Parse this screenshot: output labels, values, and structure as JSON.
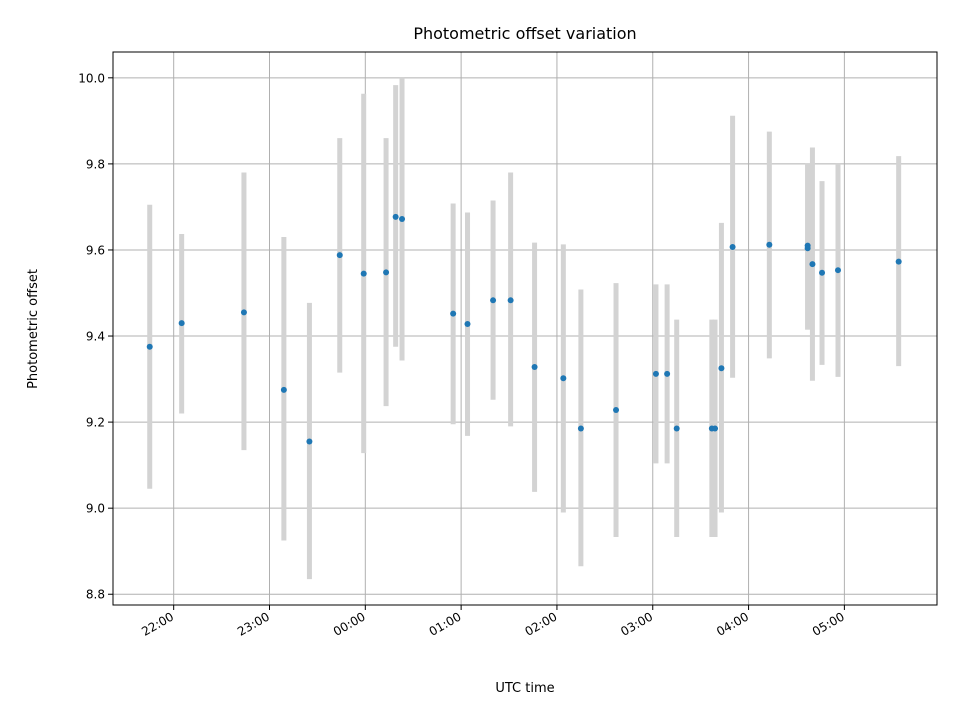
{
  "chart_data": {
    "type": "scatter",
    "title": "Photometric offset variation",
    "xlabel": "UTC time",
    "ylabel": "Photometric offset",
    "xlim": [
      "21:22",
      "05:58"
    ],
    "ylim": [
      8.775,
      10.06
    ],
    "grid": true,
    "x_ticks": [
      "22:00",
      "23:00",
      "00:00",
      "01:00",
      "02:00",
      "03:00",
      "04:00",
      "05:00"
    ],
    "y_ticks": [
      "8.8",
      "9.0",
      "9.2",
      "9.4",
      "9.6",
      "9.8",
      "10.0"
    ],
    "colors": {
      "points": "#1f77b4",
      "errorbars": "#d3d3d3",
      "grid": "#b0b0b0"
    },
    "points": [
      {
        "x": "21:45",
        "y": 9.375,
        "lo": 9.045,
        "hi": 9.705
      },
      {
        "x": "22:05",
        "y": 9.43,
        "lo": 9.22,
        "hi": 9.637
      },
      {
        "x": "22:44",
        "y": 9.455,
        "lo": 9.135,
        "hi": 9.78
      },
      {
        "x": "23:09",
        "y": 9.275,
        "lo": 8.925,
        "hi": 9.63
      },
      {
        "x": "23:25",
        "y": 9.155,
        "lo": 8.835,
        "hi": 9.477
      },
      {
        "x": "23:44",
        "y": 9.588,
        "lo": 9.315,
        "hi": 9.86
      },
      {
        "x": "23:59",
        "y": 9.545,
        "lo": 9.128,
        "hi": 9.963
      },
      {
        "x": "00:13",
        "y": 9.548,
        "lo": 9.237,
        "hi": 9.86
      },
      {
        "x": "00:19",
        "y": 9.677,
        "lo": 9.375,
        "hi": 9.983
      },
      {
        "x": "00:23",
        "y": 9.672,
        "lo": 9.343,
        "hi": 10.0
      },
      {
        "x": "00:55",
        "y": 9.452,
        "lo": 9.195,
        "hi": 9.708
      },
      {
        "x": "01:04",
        "y": 9.428,
        "lo": 9.168,
        "hi": 9.687
      },
      {
        "x": "01:20",
        "y": 9.483,
        "lo": 9.252,
        "hi": 9.715
      },
      {
        "x": "01:31",
        "y": 9.483,
        "lo": 9.19,
        "hi": 9.78
      },
      {
        "x": "01:46",
        "y": 9.328,
        "lo": 9.038,
        "hi": 9.617
      },
      {
        "x": "02:04",
        "y": 9.302,
        "lo": 8.99,
        "hi": 9.613
      },
      {
        "x": "02:15",
        "y": 9.185,
        "lo": 8.865,
        "hi": 9.508
      },
      {
        "x": "02:37",
        "y": 9.228,
        "lo": 8.933,
        "hi": 9.523
      },
      {
        "x": "03:02",
        "y": 9.312,
        "lo": 9.104,
        "hi": 9.52
      },
      {
        "x": "03:09",
        "y": 9.312,
        "lo": 9.104,
        "hi": 9.52
      },
      {
        "x": "03:15",
        "y": 9.185,
        "lo": 8.933,
        "hi": 9.438
      },
      {
        "x": "03:37",
        "y": 9.185,
        "lo": 8.933,
        "hi": 9.438
      },
      {
        "x": "03:39",
        "y": 9.185,
        "lo": 8.933,
        "hi": 9.438
      },
      {
        "x": "03:43",
        "y": 9.325,
        "lo": 8.99,
        "hi": 9.663
      },
      {
        "x": "03:50",
        "y": 9.607,
        "lo": 9.303,
        "hi": 9.912
      },
      {
        "x": "04:13",
        "y": 9.612,
        "lo": 9.348,
        "hi": 9.875
      },
      {
        "x": "04:37",
        "y": 9.61,
        "lo": 9.415,
        "hi": 9.8
      },
      {
        "x": "04:37",
        "y": 9.604,
        "lo": 9.415,
        "hi": 9.8
      },
      {
        "x": "04:40",
        "y": 9.567,
        "lo": 9.296,
        "hi": 9.838
      },
      {
        "x": "04:46",
        "y": 9.547,
        "lo": 9.333,
        "hi": 9.76
      },
      {
        "x": "04:56",
        "y": 9.553,
        "lo": 9.305,
        "hi": 9.8
      },
      {
        "x": "05:34",
        "y": 9.573,
        "lo": 9.33,
        "hi": 9.818
      }
    ]
  }
}
